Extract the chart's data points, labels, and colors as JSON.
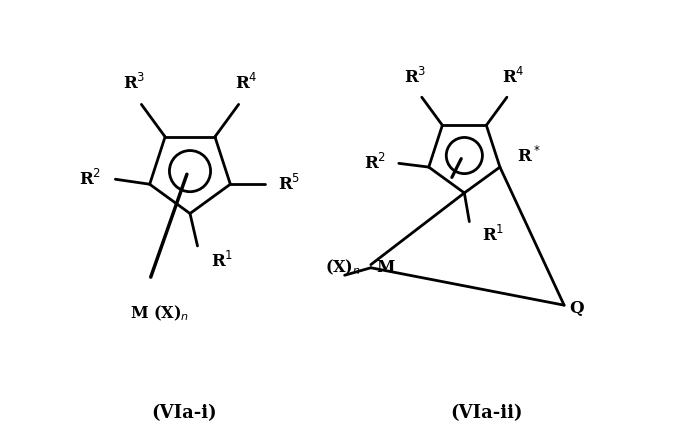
{
  "bg_color": "#ffffff",
  "fig_width": 6.98,
  "fig_height": 4.42,
  "dpi": 100,
  "label_i": "(VIa-i)",
  "label_ii": "(VIa-ii)",
  "lw": 2.0,
  "circle_lw": 2.0
}
